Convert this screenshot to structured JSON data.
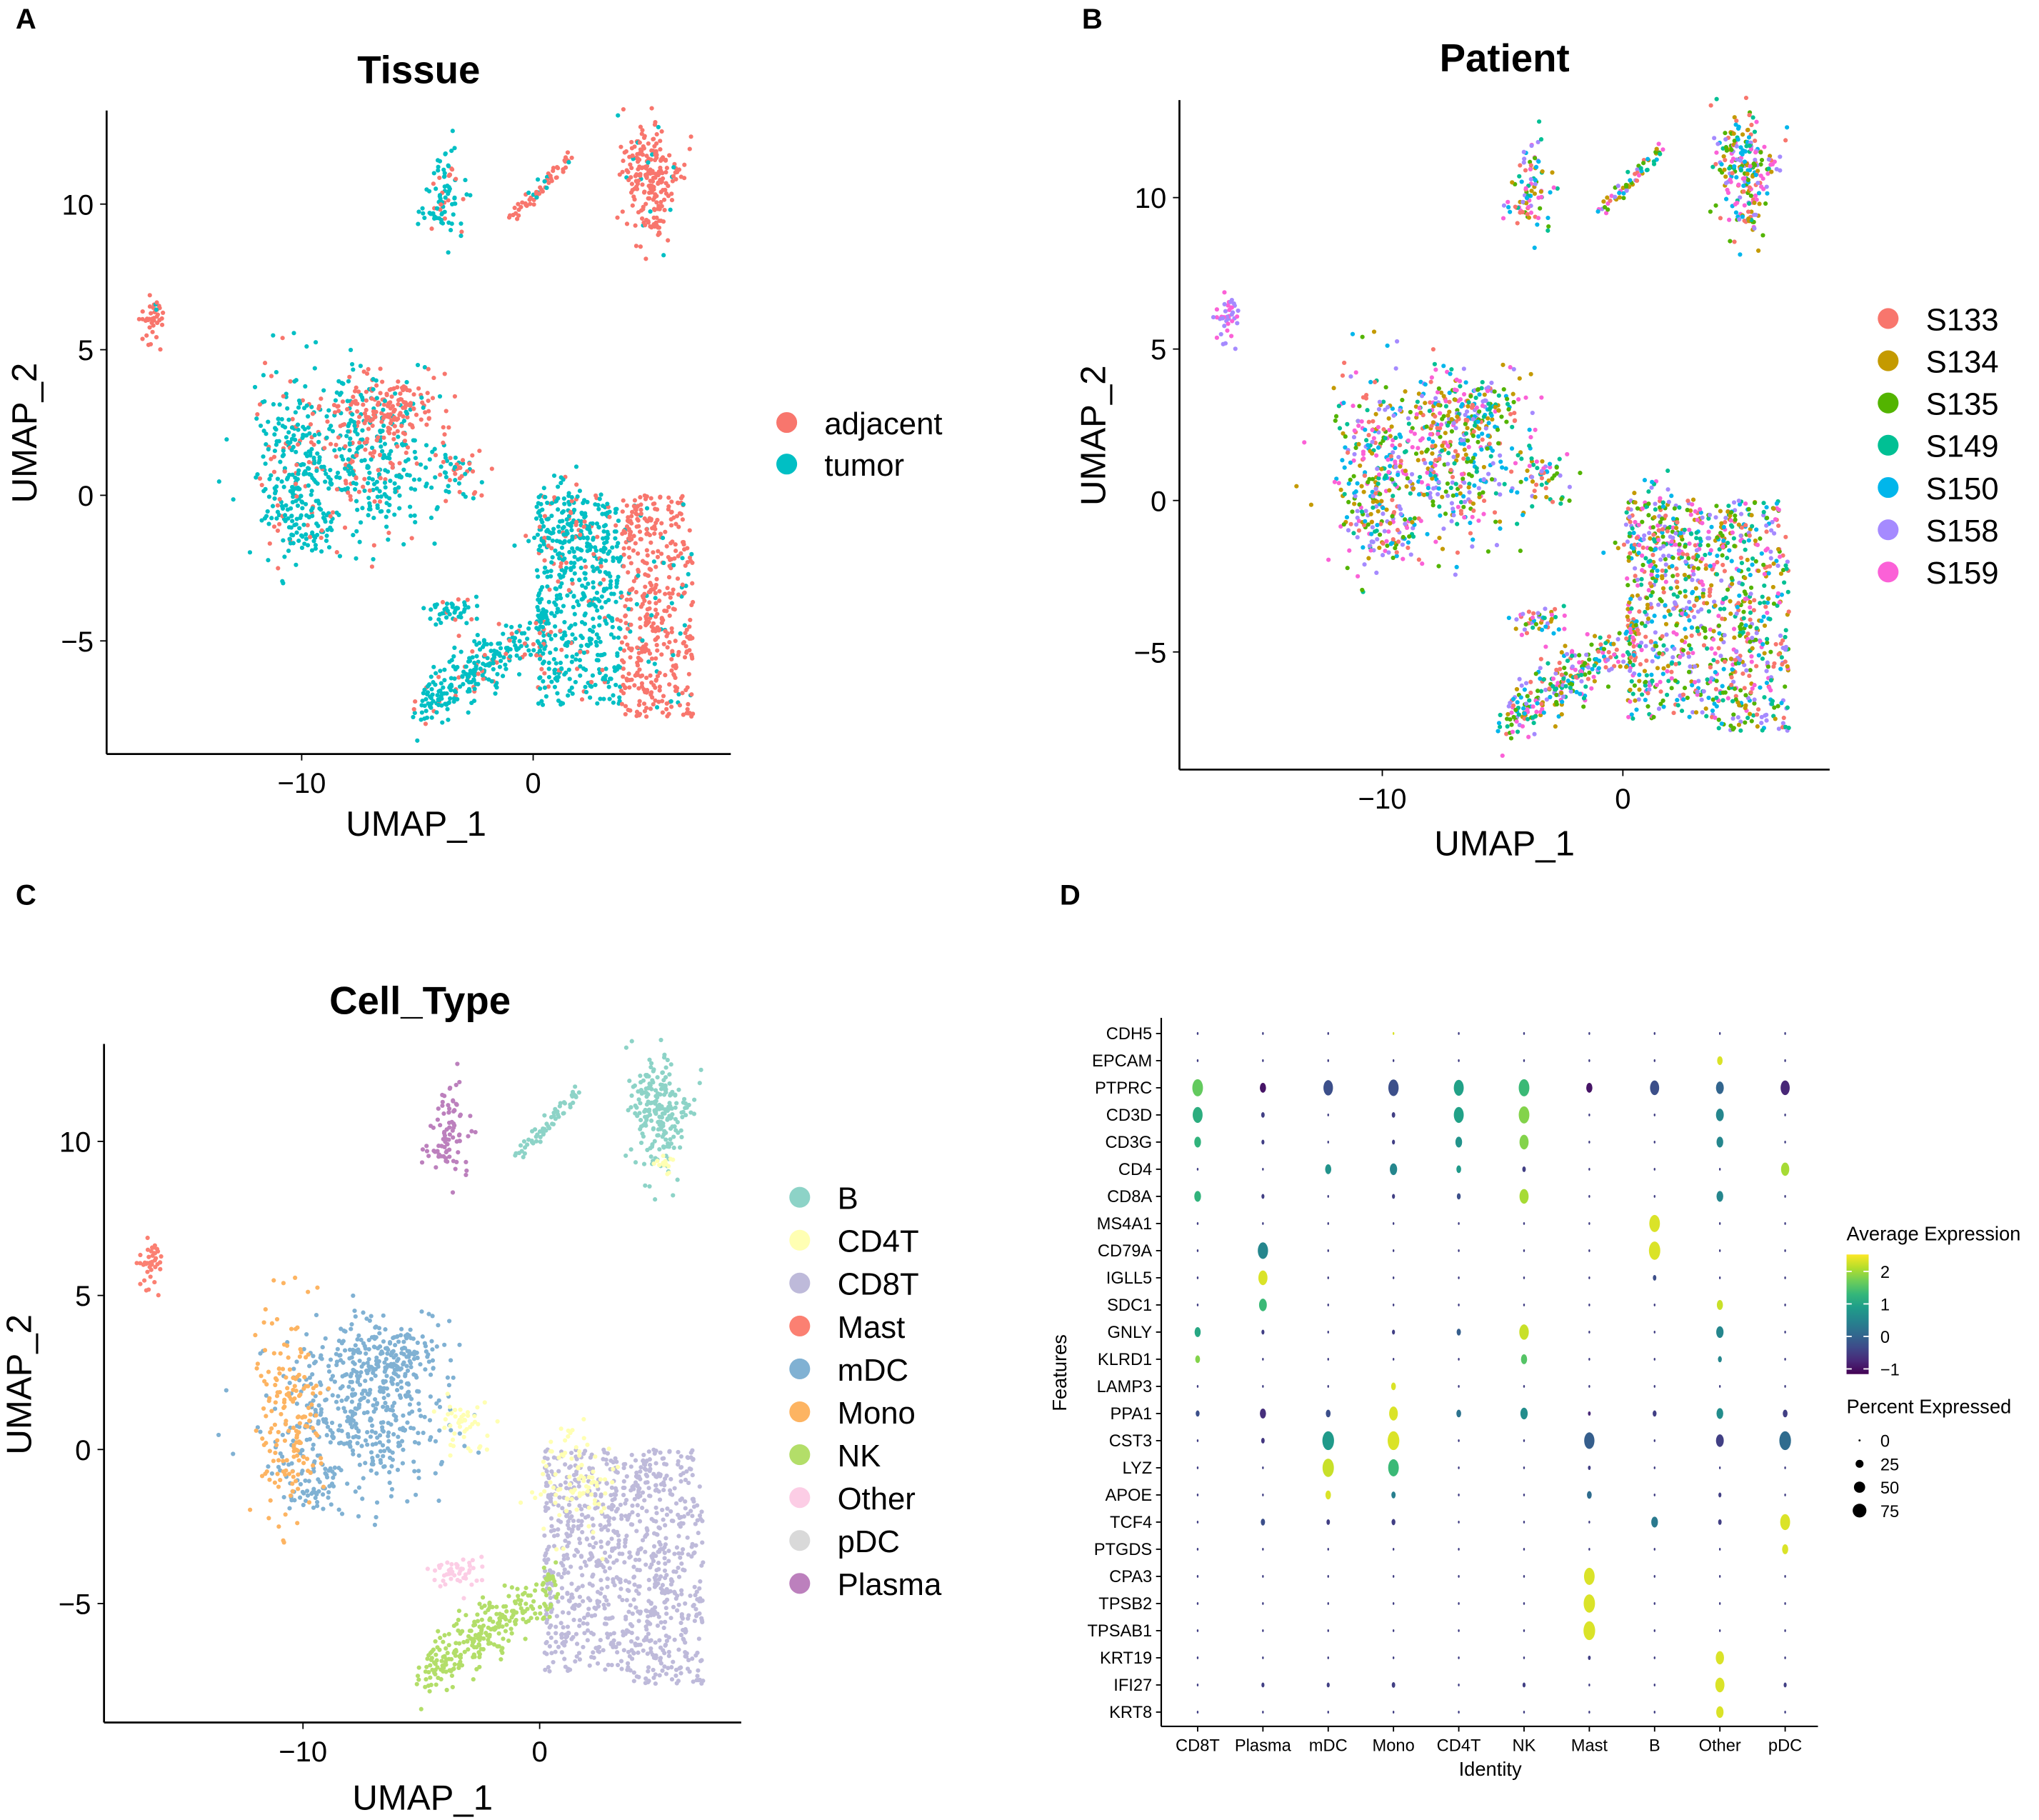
{
  "panels": {
    "A": {
      "letter": "A",
      "title": "Tissue",
      "xlabel": "UMAP_1",
      "ylabel": "UMAP_2"
    },
    "B": {
      "letter": "B",
      "title": "Patient",
      "xlabel": "UMAP_1",
      "ylabel": "UMAP_2"
    },
    "C": {
      "letter": "C",
      "title": "Cell_Type",
      "xlabel": "UMAP_1",
      "ylabel": "UMAP_2"
    },
    "D": {
      "letter": "D",
      "xlabel": "Identity",
      "ylabel": "Features",
      "legend_color_title": "Average Expression",
      "legend_size_title": "Percent Expressed"
    }
  },
  "chart_data": [
    {
      "type": "scatter",
      "panel": "A",
      "title": "Tissue",
      "xlabel": "UMAP_1",
      "ylabel": "UMAP_2",
      "xticks": [
        -10,
        0
      ],
      "yticks": [
        -5,
        0,
        5,
        10
      ],
      "xlim": [
        -18.4,
        8.5
      ],
      "ylim": [
        -8.9,
        13.2
      ],
      "legend": [
        {
          "label": "adjacent",
          "color": "#F8766D"
        },
        {
          "label": "tumor",
          "color": "#00BFC4"
        }
      ],
      "legend_position": "right",
      "clusters": [
        {
          "cell_type": "Mast",
          "shape": "blob",
          "cx": -16.5,
          "cy": 6,
          "sx": 0.25,
          "sy": 0.5,
          "n": 40,
          "tumor_frac": 0.1,
          "patients": [
            "S158",
            "S159"
          ]
        },
        {
          "cell_type": "Plasma",
          "shape": "blob",
          "cx": -3.8,
          "cy": 10.2,
          "sx": 0.45,
          "sy": 0.8,
          "n": 90,
          "tumor_frac": 0.8
        },
        {
          "cell_type": "B",
          "shape": "line",
          "x1": -1.1,
          "y1": 9.4,
          "x2": 1.7,
          "y2": 11.6,
          "w": 0.12,
          "n": 60,
          "tumor_frac": 0.1
        },
        {
          "cell_type": "B",
          "shape": "blob",
          "cx": 5.0,
          "cy": 11.0,
          "sx": 0.6,
          "sy": 1.0,
          "n": 220,
          "tumor_frac": 0.05
        },
        {
          "cell_type": "CD4T",
          "shape": "blob",
          "cx": 5.2,
          "cy": 9.3,
          "sx": 0.2,
          "sy": 0.2,
          "n": 15,
          "tumor_frac": 0.1
        },
        {
          "cell_type": "mDC",
          "shape": "blob",
          "cx": -7.5,
          "cy": 1.2,
          "sx": 1.9,
          "sy": 1.4,
          "n": 420,
          "tumor_frac": 0.75
        },
        {
          "cell_type": "mDC",
          "shape": "blob",
          "cx": -6.2,
          "cy": 3.0,
          "sx": 1.2,
          "sy": 0.6,
          "n": 160,
          "tumor_frac": 0.1
        },
        {
          "cell_type": "mDC",
          "shape": "blob",
          "cx": -9.8,
          "cy": -1.0,
          "sx": 0.6,
          "sy": 0.5,
          "n": 60,
          "tumor_frac": 0.9
        },
        {
          "cell_type": "Mono",
          "shape": "blob",
          "cx": -10.6,
          "cy": 1.0,
          "sx": 0.7,
          "sy": 1.7,
          "n": 170,
          "tumor_frac": 0.8
        },
        {
          "cell_type": "CD4T",
          "shape": "blob",
          "cx": -3.4,
          "cy": 0.8,
          "sx": 0.5,
          "sy": 0.5,
          "n": 45,
          "tumor_frac": 0.5
        },
        {
          "cell_type": "Other",
          "shape": "blob",
          "cx": -3.6,
          "cy": -4.0,
          "sx": 0.6,
          "sy": 0.25,
          "n": 45,
          "tumor_frac": 0.9
        },
        {
          "cell_type": "CD8T",
          "shape": "rect",
          "x0": 0.2,
          "x1": 3.8,
          "y0": -7.2,
          "y1": 0,
          "n": 500,
          "tumor_frac": 0.85
        },
        {
          "cell_type": "CD8T",
          "shape": "rect",
          "x0": 3.8,
          "x1": 6.9,
          "y0": -7.6,
          "y1": 0,
          "n": 450,
          "tumor_frac": 0.1
        },
        {
          "cell_type": "CD4T",
          "shape": "blob",
          "cx": 1.4,
          "cy": -1.0,
          "sx": 0.8,
          "sy": 0.9,
          "n": 90,
          "tumor_frac": 0.7
        },
        {
          "cell_type": "NK",
          "shape": "line",
          "x1": -5.0,
          "y1": -7.4,
          "x2": 0.5,
          "y2": -4.5,
          "w": 0.45,
          "n": 280,
          "tumor_frac": 0.85
        }
      ]
    },
    {
      "type": "scatter",
      "panel": "B",
      "title": "Patient",
      "xlabel": "UMAP_1",
      "ylabel": "UMAP_2",
      "xticks": [
        -10,
        0
      ],
      "yticks": [
        -5,
        0,
        5,
        10
      ],
      "xlim": [
        -18.4,
        8.5
      ],
      "ylim": [
        -8.9,
        13.2
      ],
      "legend": [
        {
          "label": "S133",
          "color": "#F8766D"
        },
        {
          "label": "S134",
          "color": "#C49A00"
        },
        {
          "label": "S135",
          "color": "#53B400"
        },
        {
          "label": "S149",
          "color": "#00C094"
        },
        {
          "label": "S150",
          "color": "#00B6EB"
        },
        {
          "label": "S158",
          "color": "#A58AFF"
        },
        {
          "label": "S159",
          "color": "#FB61D7"
        }
      ],
      "legend_position": "right"
    },
    {
      "type": "scatter",
      "panel": "C",
      "title": "Cell_Type",
      "xlabel": "UMAP_1",
      "ylabel": "UMAP_2",
      "xticks": [
        -10,
        0
      ],
      "yticks": [
        -5,
        0,
        5,
        10
      ],
      "xlim": [
        -18.4,
        8.5
      ],
      "ylim": [
        -8.9,
        13.2
      ],
      "legend": [
        {
          "label": "B",
          "color": "#8DD3C7"
        },
        {
          "label": "CD4T",
          "color": "#FFFFB3"
        },
        {
          "label": "CD8T",
          "color": "#BEBADA"
        },
        {
          "label": "Mast",
          "color": "#FB8072"
        },
        {
          "label": "mDC",
          "color": "#80B1D3"
        },
        {
          "label": "Mono",
          "color": "#FDB462"
        },
        {
          "label": "NK",
          "color": "#B3DE69"
        },
        {
          "label": "Other",
          "color": "#FCCDE5"
        },
        {
          "label": "pDC",
          "color": "#D9D9D9"
        },
        {
          "label": "Plasma",
          "color": "#BC80BD"
        }
      ],
      "legend_position": "right"
    },
    {
      "type": "dotplot",
      "panel": "D",
      "xlabel": "Identity",
      "ylabel": "Features",
      "identities": [
        "CD8T",
        "Plasma",
        "mDC",
        "Mono",
        "CD4T",
        "NK",
        "Mast",
        "B",
        "Other",
        "pDC"
      ],
      "features": [
        "CDH5",
        "EPCAM",
        "PTPRC",
        "CD3D",
        "CD3G",
        "CD4",
        "CD8A",
        "MS4A1",
        "CD79A",
        "IGLL5",
        "SDC1",
        "GNLY",
        "KLRD1",
        "LAMP3",
        "PPA1",
        "CST3",
        "LYZ",
        "APOE",
        "TCF4",
        "PTGDS",
        "CPA3",
        "TPSB2",
        "TPSAB1",
        "KRT19",
        "IFI27",
        "KRT8"
      ],
      "default_value": {
        "avg_expression": -0.5,
        "pct_expressed": 2
      },
      "values_note": "[avg_expression, pct_expressed] per identity; unlisted identities use default_value",
      "values": {
        "CDH5": {
          "Mono": [
            2.3,
            2
          ]
        },
        "EPCAM": {
          "Other": [
            2.3,
            20
          ]
        },
        "PTPRC": {
          "CD8T": [
            1.6,
            75
          ],
          "Plasma": [
            -1.0,
            25
          ],
          "mDC": [
            -0.3,
            60
          ],
          "Mono": [
            -0.3,
            70
          ],
          "CD4T": [
            0.9,
            65
          ],
          "NK": [
            1.3,
            75
          ],
          "Mast": [
            -1.0,
            25
          ],
          "B": [
            -0.3,
            55
          ],
          "Other": [
            0.0,
            40
          ],
          "pDC": [
            -0.8,
            55
          ]
        },
        "CD3D": {
          "CD8T": [
            1.1,
            65
          ],
          "Plasma": [
            -0.5,
            8
          ],
          "Mono": [
            -0.5,
            8
          ],
          "CD4T": [
            0.9,
            65
          ],
          "NK": [
            1.8,
            75
          ],
          "Other": [
            0.5,
            40
          ]
        },
        "CD3G": {
          "CD8T": [
            1.2,
            30
          ],
          "Plasma": [
            -0.5,
            6
          ],
          "Mono": [
            -0.5,
            6
          ],
          "CD4T": [
            0.7,
            30
          ],
          "NK": [
            1.8,
            55
          ],
          "Other": [
            0.5,
            30
          ]
        },
        "CD4": {
          "mDC": [
            0.7,
            25
          ],
          "Mono": [
            0.5,
            35
          ],
          "CD4T": [
            0.8,
            15
          ],
          "NK": [
            -0.5,
            8
          ],
          "pDC": [
            2.0,
            45
          ]
        },
        "CD8A": {
          "CD8T": [
            1.2,
            30
          ],
          "Plasma": [
            -0.5,
            6
          ],
          "Mono": [
            -0.5,
            6
          ],
          "CD4T": [
            -0.3,
            10
          ],
          "NK": [
            2.0,
            55
          ],
          "Other": [
            0.5,
            30
          ]
        },
        "MS4A1": {
          "B": [
            2.3,
            75
          ]
        },
        "CD79A": {
          "Plasma": [
            0.5,
            70
          ],
          "B": [
            2.3,
            85
          ]
        },
        "IGLL5": {
          "Plasma": [
            2.3,
            55
          ],
          "B": [
            -0.3,
            8
          ]
        },
        "SDC1": {
          "Plasma": [
            1.3,
            40
          ],
          "Other": [
            2.2,
            25
          ]
        },
        "GNLY": {
          "CD8T": [
            1.0,
            25
          ],
          "Plasma": [
            -0.5,
            6
          ],
          "Mono": [
            -0.5,
            6
          ],
          "CD4T": [
            -0.1,
            12
          ],
          "NK": [
            2.2,
            60
          ],
          "Other": [
            0.5,
            35
          ]
        },
        "KLRD1": {
          "CD8T": [
            1.8,
            15
          ],
          "NK": [
            1.5,
            25
          ],
          "Other": [
            0.5,
            10
          ]
        },
        "LAMP3": {
          "Mono": [
            2.3,
            15
          ]
        },
        "PPA1": {
          "CD8T": [
            -0.3,
            10
          ],
          "Plasma": [
            -0.7,
            25
          ],
          "mDC": [
            -0.3,
            15
          ],
          "Mono": [
            2.3,
            50
          ],
          "CD4T": [
            0.2,
            15
          ],
          "NK": [
            0.6,
            35
          ],
          "Mast": [
            -0.8,
            5
          ],
          "B": [
            -0.5,
            10
          ],
          "Other": [
            0.6,
            30
          ],
          "pDC": [
            -0.5,
            15
          ]
        },
        "CST3": {
          "Plasma": [
            -0.6,
            8
          ],
          "mDC": [
            0.8,
            90
          ],
          "Mono": [
            2.3,
            90
          ],
          "Mast": [
            -0.1,
            70
          ],
          "Other": [
            -0.5,
            40
          ],
          "pDC": [
            0.1,
            90
          ]
        },
        "LYZ": {
          "mDC": [
            2.2,
            85
          ],
          "Mono": [
            1.3,
            75
          ],
          "Mast": [
            -0.5,
            5
          ]
        },
        "APOE": {
          "mDC": [
            2.3,
            20
          ],
          "Mono": [
            0.4,
            12
          ],
          "Mast": [
            0.1,
            15
          ],
          "Other": [
            -0.5,
            6
          ]
        },
        "TCF4": {
          "Plasma": [
            -0.3,
            12
          ],
          "mDC": [
            -0.5,
            8
          ],
          "Mono": [
            -0.5,
            10
          ],
          "B": [
            0.3,
            30
          ],
          "Other": [
            -0.5,
            8
          ],
          "pDC": [
            2.3,
            65
          ]
        },
        "PTGDS": {
          "pDC": [
            2.3,
            25
          ]
        },
        "CPA3": {
          "Mast": [
            2.3,
            75
          ]
        },
        "TPSB2": {
          "Mast": [
            2.3,
            85
          ]
        },
        "TPSAB1": {
          "Mast": [
            2.3,
            90
          ]
        },
        "KRT19": {
          "Other": [
            2.3,
            45
          ],
          "Mast": [
            -0.5,
            5
          ]
        },
        "IFI27": {
          "Other": [
            2.3,
            55
          ],
          "Plasma": [
            -0.5,
            6
          ],
          "mDC": [
            -0.5,
            6
          ],
          "Mono": [
            -0.5,
            8
          ],
          "NK": [
            -0.5,
            6
          ],
          "pDC": [
            -0.5,
            6
          ]
        },
        "KRT8": {
          "Other": [
            2.3,
            35
          ]
        }
      },
      "color_scale": {
        "name": "viridis",
        "limits": [
          -1.2,
          2.5
        ],
        "ticks": [
          2,
          1,
          0,
          -1
        ]
      },
      "size_scale": {
        "ticks": [
          0,
          25,
          50,
          75
        ]
      }
    }
  ]
}
